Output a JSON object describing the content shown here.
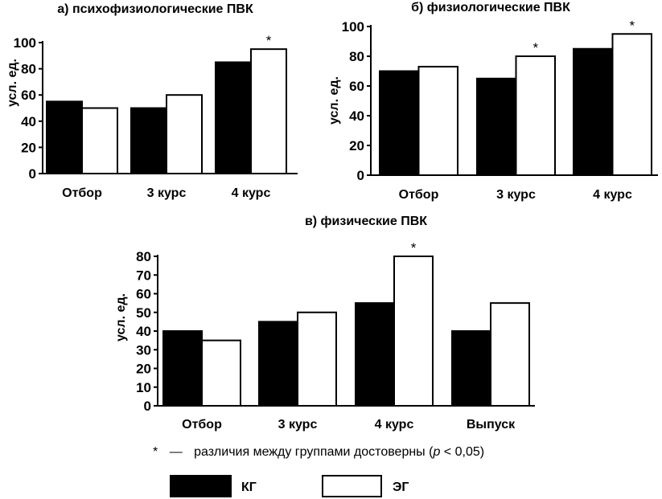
{
  "chart_data": [
    {
      "type": "bar",
      "title": "а) психофизиологические ПВК",
      "ylabel": "усл. ед.",
      "ylim": [
        0,
        100
      ],
      "yticks": [
        0,
        20,
        40,
        60,
        80,
        100
      ],
      "categories": [
        "Отбор",
        "3 курс",
        "4 курс"
      ],
      "series": [
        {
          "name": "КГ",
          "values": [
            55,
            50,
            85
          ]
        },
        {
          "name": "ЭГ",
          "values": [
            50,
            60,
            95
          ]
        }
      ],
      "significant": [
        {
          "category": "4 курс",
          "series": "ЭГ",
          "mark": "*"
        }
      ]
    },
    {
      "type": "bar",
      "title": "б) физиологические ПВК",
      "ylabel": "усл. ед.",
      "ylim": [
        0,
        100
      ],
      "yticks": [
        0,
        20,
        40,
        60,
        80,
        100
      ],
      "categories": [
        "Отбор",
        "3 курс",
        "4 курс"
      ],
      "series": [
        {
          "name": "КГ",
          "values": [
            70,
            65,
            85
          ]
        },
        {
          "name": "ЭГ",
          "values": [
            73,
            80,
            95
          ]
        }
      ],
      "significant": [
        {
          "category": "3 курс",
          "series": "ЭГ",
          "mark": "*"
        },
        {
          "category": "4 курс",
          "series": "ЭГ",
          "mark": "*"
        }
      ]
    },
    {
      "type": "bar",
      "title": "в) физические ПВК",
      "ylabel": "усл. ед.",
      "ylim": [
        0,
        80
      ],
      "yticks": [
        0,
        10,
        20,
        30,
        40,
        50,
        60,
        70,
        80
      ],
      "categories": [
        "Отбор",
        "3 курс",
        "4 курс",
        "Выпуск"
      ],
      "series": [
        {
          "name": "КГ",
          "values": [
            40,
            45,
            55,
            40
          ]
        },
        {
          "name": "ЭГ",
          "values": [
            35,
            50,
            80,
            55
          ]
        }
      ],
      "significant": [
        {
          "category": "4 курс",
          "series": "ЭГ",
          "mark": "*"
        }
      ]
    }
  ],
  "footnote": {
    "star": "*",
    "dash": "—",
    "text_before": "различия между группами достоверны (",
    "p": "p",
    "text_after": " < 0,05)"
  },
  "legend": {
    "items": [
      {
        "label": "КГ",
        "fill": "#000000"
      },
      {
        "label": "ЭГ",
        "fill": "#ffffff"
      }
    ]
  },
  "colors": {
    "kg": "#000000",
    "eg": "#ffffff",
    "stroke": "#000000"
  }
}
